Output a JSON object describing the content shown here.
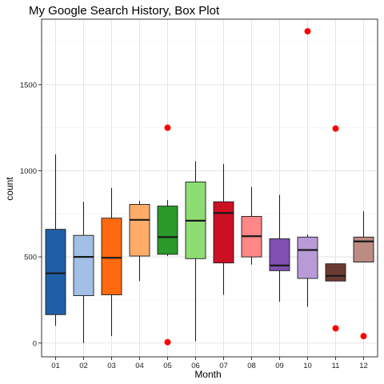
{
  "chart_data": {
    "type": "box",
    "title": "My Google Search History, Box Plot",
    "xlabel": "Month",
    "ylabel": "count",
    "categories": [
      "01",
      "02",
      "03",
      "04",
      "05",
      "06",
      "07",
      "08",
      "09",
      "10",
      "11",
      "12"
    ],
    "ylim": [
      -80,
      1880
    ],
    "yticks": [
      0,
      500,
      1000,
      1500
    ],
    "grid": true,
    "legend": "none",
    "outlier_color": "#ff0000",
    "boxes": [
      {
        "month": "01",
        "color": "#1f5fa8",
        "whisker_low": 100,
        "q1": 165,
        "median": 405,
        "q3": 660,
        "whisker_high": 1095,
        "outliers": []
      },
      {
        "month": "02",
        "color": "#a3bfe6",
        "whisker_low": 0,
        "q1": 275,
        "median": 500,
        "q3": 625,
        "whisker_high": 820,
        "outliers": []
      },
      {
        "month": "03",
        "color": "#ff6a10",
        "whisker_low": 40,
        "q1": 280,
        "median": 495,
        "q3": 725,
        "whisker_high": 900,
        "outliers": []
      },
      {
        "month": "04",
        "color": "#ffac68",
        "whisker_low": 360,
        "q1": 505,
        "median": 715,
        "q3": 805,
        "whisker_high": 825,
        "outliers": []
      },
      {
        "month": "05",
        "color": "#2a9a2a",
        "whisker_low": 505,
        "q1": 515,
        "median": 615,
        "q3": 795,
        "whisker_high": 830,
        "outliers": [
          5,
          1250
        ]
      },
      {
        "month": "06",
        "color": "#8ddd72",
        "whisker_low": 10,
        "q1": 490,
        "median": 710,
        "q3": 935,
        "whisker_high": 1055,
        "outliers": []
      },
      {
        "month": "07",
        "color": "#cc1023",
        "whisker_low": 280,
        "q1": 465,
        "median": 755,
        "q3": 820,
        "whisker_high": 1040,
        "outliers": []
      },
      {
        "month": "08",
        "color": "#ff8787",
        "whisker_low": 455,
        "q1": 500,
        "median": 620,
        "q3": 735,
        "whisker_high": 905,
        "outliers": []
      },
      {
        "month": "09",
        "color": "#8050b2",
        "whisker_low": 240,
        "q1": 420,
        "median": 450,
        "q3": 605,
        "whisker_high": 860,
        "outliers": []
      },
      {
        "month": "10",
        "color": "#b89bd6",
        "whisker_low": 210,
        "q1": 375,
        "median": 540,
        "q3": 615,
        "whisker_high": 630,
        "outliers": [
          1810
        ]
      },
      {
        "month": "11",
        "color": "#6b3a32",
        "whisker_low": 360,
        "q1": 360,
        "median": 390,
        "q3": 460,
        "whisker_high": 460,
        "outliers": [
          85,
          1245
        ]
      },
      {
        "month": "12",
        "color": "#bc8b82",
        "whisker_low": 470,
        "q1": 470,
        "median": 590,
        "q3": 615,
        "whisker_high": 765,
        "outliers": [
          40
        ]
      }
    ]
  }
}
